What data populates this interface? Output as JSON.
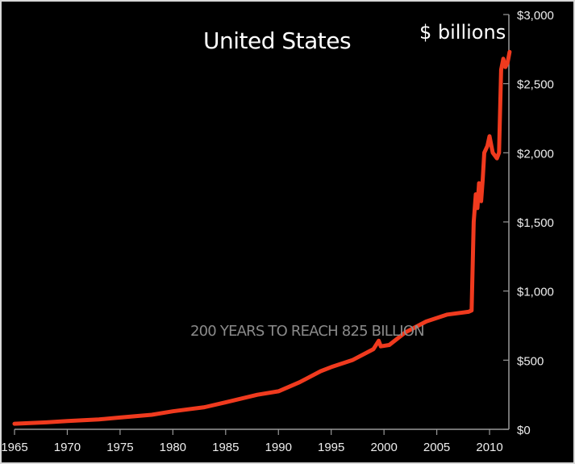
{
  "chart_data": {
    "type": "line",
    "title": "United States",
    "ylabel": "$ billions",
    "annotation": "200 YEARS TO REACH 825 BILLION",
    "xlim": [
      1965,
      2012
    ],
    "ylim": [
      0,
      3000
    ],
    "x_ticks": [
      "1965",
      "1970",
      "1975",
      "1980",
      "1985",
      "1990",
      "1995",
      "2000",
      "2005",
      "2010"
    ],
    "y_ticks": [
      "$0",
      "$500",
      "$1,000",
      "$1,500",
      "$2,000",
      "$2,500",
      "$3,000"
    ],
    "grid": false,
    "series": [
      {
        "name": "US",
        "color": "#f03a1e",
        "x": [
          1965,
          1968,
          1970,
          1973,
          1975,
          1978,
          1980,
          1983,
          1985,
          1988,
          1990,
          1992,
          1994,
          1995,
          1997,
          1999,
          1999.5,
          1999.7,
          2000.5,
          2002,
          2004,
          2006,
          2008,
          2008.3,
          2008.5,
          2008.7,
          2008.85,
          2009,
          2009.2,
          2009.35,
          2009.5,
          2009.8,
          2010,
          2010.3,
          2010.7,
          2010.9,
          2011.1,
          2011.3,
          2011.5,
          2011.7,
          2011.9
        ],
        "y": [
          40,
          50,
          60,
          72,
          85,
          105,
          130,
          160,
          195,
          250,
          275,
          340,
          420,
          450,
          500,
          580,
          640,
          600,
          610,
          700,
          780,
          830,
          850,
          860,
          1500,
          1700,
          1600,
          1780,
          1650,
          1800,
          2000,
          2050,
          2120,
          2000,
          1960,
          2000,
          2600,
          2680,
          2620,
          2650,
          2730
        ]
      }
    ]
  }
}
